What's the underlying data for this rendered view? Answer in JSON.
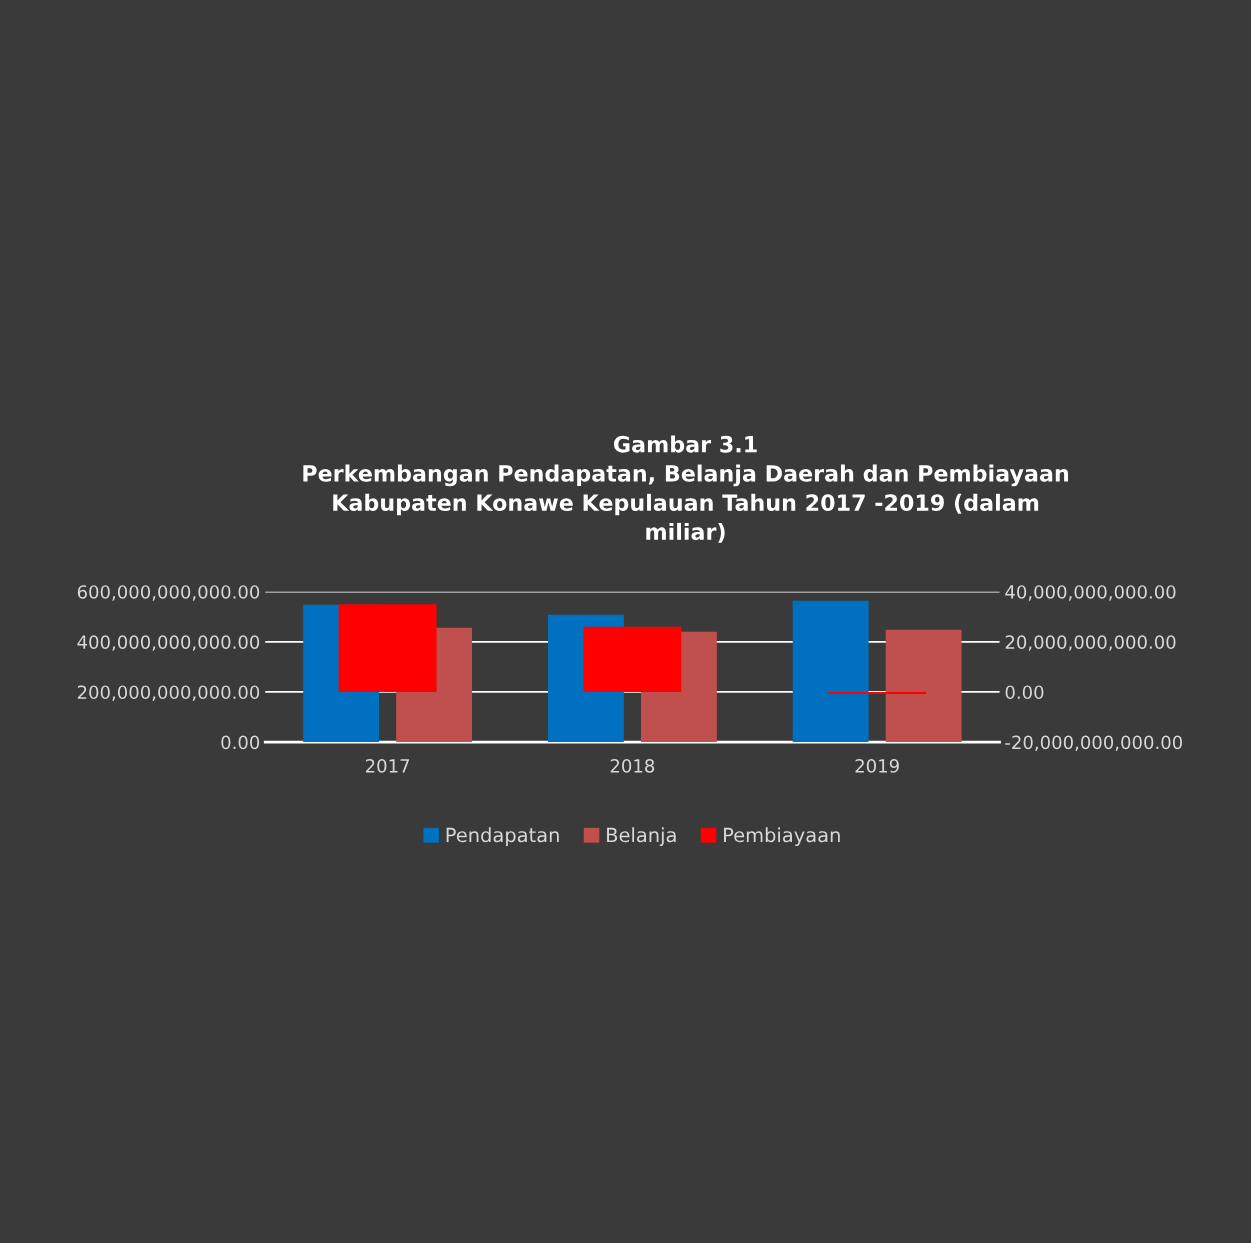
{
  "chart_data": {
    "type": "bar",
    "title": "Gambar 3.1\nPerkembangan Pendapatan, Belanja Daerah dan Pembiayaan\nKabupaten Konawe Kepulauan Tahun 2017 -2019 (dalam\nmiliar)",
    "categories": [
      "2017",
      "2018",
      "2019"
    ],
    "series": [
      {
        "name": "Pendapatan",
        "color": "#0070c0",
        "values": [
          548000000000,
          508000000000,
          564000000000
        ]
      },
      {
        "name": "Belanja",
        "color": "#c0504d",
        "values": [
          456000000000,
          440000000000,
          448000000000
        ]
      },
      {
        "name": "Pembiayaan",
        "color": "#ff0000",
        "values": [
          35000000000,
          26000000000,
          -800000000
        ],
        "axis": "y2"
      }
    ],
    "ylim": [
      0,
      600000000000
    ],
    "yticks": [
      {
        "value": 0,
        "label": "0.00"
      },
      {
        "value": 200000000000,
        "label": "200,000,000,000.00"
      },
      {
        "value": 400000000000,
        "label": "400,000,000,000.00"
      },
      {
        "value": 600000000000,
        "label": "600,000,000,000.00"
      }
    ],
    "y2lim": [
      -20000000000,
      40000000000
    ],
    "y2ticks": [
      {
        "value": -20000000000,
        "label": "-20,000,000,000.00"
      },
      {
        "value": 0,
        "label": "0.00"
      },
      {
        "value": 20000000000,
        "label": "20,000,000,000.00"
      },
      {
        "value": 40000000000,
        "label": "40,000,000,000.00"
      }
    ],
    "grid": "y",
    "legend": "bottom"
  }
}
